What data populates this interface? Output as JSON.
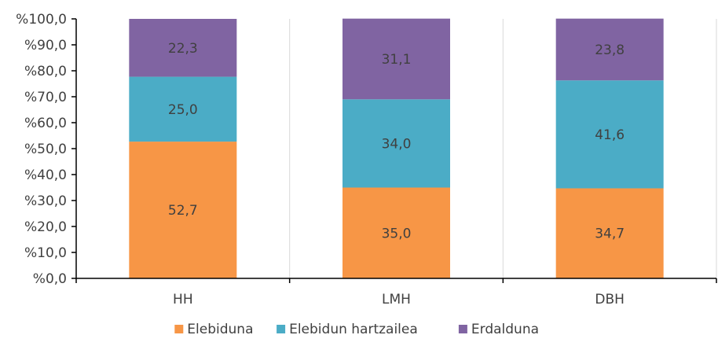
{
  "chart_data": {
    "type": "bar",
    "stacked": true,
    "categories": [
      "HH",
      "LMH",
      "DBH"
    ],
    "series": [
      {
        "name": "Elebiduna",
        "values": [
          52.7,
          35.0,
          34.7
        ],
        "labels": [
          "52,7",
          "35,0",
          "34,7"
        ],
        "color": "#f79646"
      },
      {
        "name": "Elebidun hartzailea",
        "values": [
          25.0,
          34.0,
          41.6
        ],
        "labels": [
          "25,0",
          "34,0",
          "41,6"
        ],
        "color": "#4bacc6"
      },
      {
        "name": "Erdalduna",
        "values": [
          22.3,
          31.1,
          23.8
        ],
        "labels": [
          "22,3",
          "31,1",
          "23,8"
        ],
        "color": "#8064a2"
      }
    ],
    "ylim": [
      0,
      100
    ],
    "y_ticks": [
      0,
      10,
      20,
      30,
      40,
      50,
      60,
      70,
      80,
      90,
      100
    ],
    "y_tick_labels": [
      "%0,0",
      "%10,0",
      "%20,0",
      "%30,0",
      "%40,0",
      "%50,0",
      "%60,0",
      "%70,0",
      "%80,0",
      "%90,0",
      "%100,0"
    ],
    "grid": "vertical",
    "legend": "bottom-center",
    "title": "",
    "xlabel": "",
    "ylabel": "",
    "label_color": "#404040",
    "axis_color": "#000000",
    "grid_color": "#d9d9d9"
  }
}
